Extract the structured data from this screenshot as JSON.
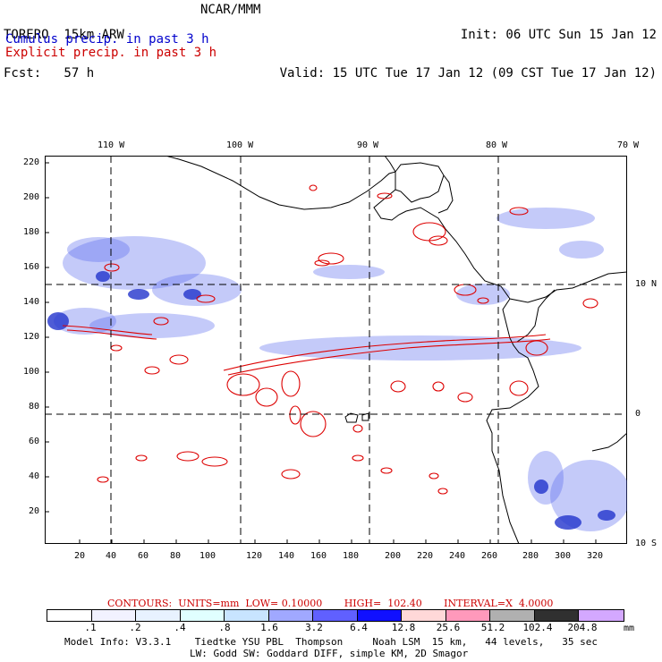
{
  "header": {
    "model": "TORERO  15km ARW",
    "fcst": "Fcst:   57 h",
    "center": "NCAR/MMM",
    "init": "Init: 06 UTC Sun 15 Jan 12",
    "valid": "Valid: 15 UTC Tue 17 Jan 12 (09 CST Tue 17 Jan 12)"
  },
  "legend": {
    "cumulus": "Cumulus precip. in past 3 h",
    "explicit": "Explicit precip. in past 3 h"
  },
  "map": {
    "x_ticks": [
      "20",
      "40",
      "60",
      "80",
      "100",
      "120",
      "140",
      "160",
      "180",
      "200",
      "220",
      "240",
      "260",
      "280",
      "300",
      "320"
    ],
    "y_ticks": [
      "20",
      "40",
      "60",
      "80",
      "100",
      "120",
      "140",
      "160",
      "180",
      "200",
      "220"
    ],
    "lon_labels": [
      "110 W",
      "100 W",
      "90 W",
      "80 W",
      "70 W"
    ],
    "lat_labels": [
      "10 N",
      "0",
      "10 S"
    ],
    "colors": {
      "cumulus": "#3344dd",
      "explicit": "#dd0000",
      "coast": "#000000"
    }
  },
  "contours": {
    "text": "CONTOURS:  UNITS=mm  LOW= 0.10000       HIGH=  102.40       INTERVAL=X  4.0000"
  },
  "colorbar": {
    "labels": [
      ".1",
      ".2",
      ".4",
      ".8",
      "1.6",
      "3.2",
      "6.4",
      "12.8",
      "25.6",
      "51.2",
      "102.4",
      "204.8"
    ],
    "colors": [
      "#ffffff",
      "#f2f2ff",
      "#e8f2ff",
      "#e0ffff",
      "#c8e4ff",
      "#a0a8ff",
      "#6060ff",
      "#1010ff",
      "#ffd8d8",
      "#ff99bb",
      "#b0b0b0",
      "#303030",
      "#d4a8ff"
    ],
    "units": "mm"
  },
  "model_info": {
    "line1": "Model Info: V3.3.1    Tiedtke YSU PBL  Thompson     Noah LSM  15 km,   44 levels,   35 sec",
    "line2": "LW: Godd SW: Goddard DIFF, simple KM, 2D Smagor"
  }
}
